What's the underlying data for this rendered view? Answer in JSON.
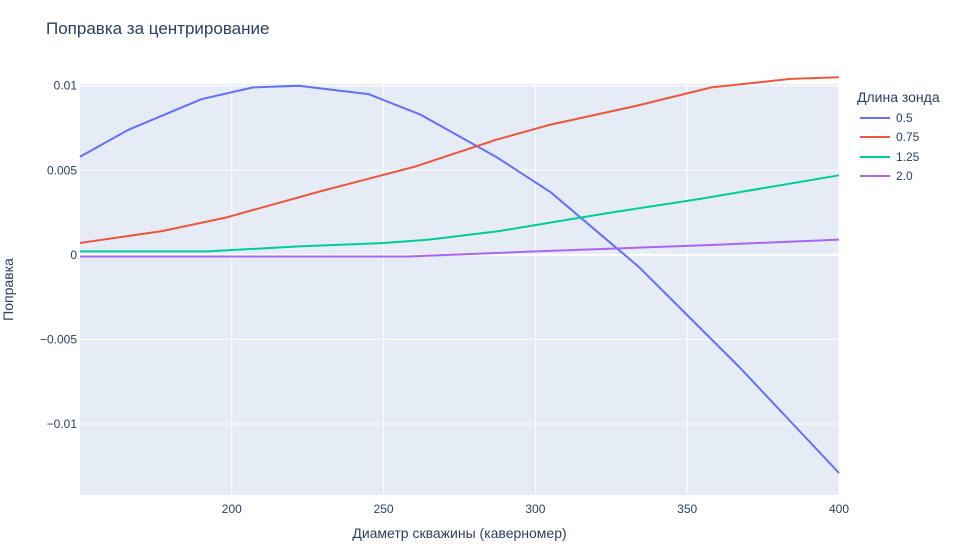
{
  "chart_data": {
    "type": "line",
    "title": "Поправка за центрирование",
    "xlabel": "Диаметр скважины (каверномер)",
    "ylabel": "Поправка",
    "xlim": [
      150,
      400
    ],
    "ylim": [
      -0.0142,
      0.0101
    ],
    "x_ticks": [
      200,
      250,
      300,
      350,
      400
    ],
    "x_tick_labels": [
      "200",
      "250",
      "300",
      "350",
      "400"
    ],
    "y_ticks": [
      0.01,
      0.005,
      0,
      -0.005,
      -0.01
    ],
    "y_tick_labels": [
      "0.01",
      "0.005",
      "0",
      "−0.005",
      "−0.01"
    ],
    "legend_title": "Длина зонда",
    "legend_position": "top-right, outside plot",
    "grid": true,
    "series": [
      {
        "name": "0.5",
        "color": "#636efa",
        "x": [
          150,
          166,
          190,
          207,
          222,
          245,
          262,
          287,
          305,
          334,
          367,
          400
        ],
        "y": [
          0.0058,
          0.0074,
          0.0092,
          0.0099,
          0.01,
          0.0095,
          0.0083,
          0.0058,
          0.0037,
          -0.0007,
          -0.0066,
          -0.0129
        ]
      },
      {
        "name": "0.75",
        "color": "#ef553b",
        "x": [
          150,
          177,
          198,
          230,
          260,
          287,
          305,
          333,
          358,
          384,
          400
        ],
        "y": [
          0.0007,
          0.0014,
          0.0022,
          0.0038,
          0.0052,
          0.0068,
          0.0077,
          0.0088,
          0.0099,
          0.0104,
          0.0105
        ]
      },
      {
        "name": "1.25",
        "color": "#00cc96",
        "x": [
          150,
          192,
          222,
          250,
          265,
          288,
          325,
          354,
          400
        ],
        "y": [
          0.0002,
          0.0002,
          0.0005,
          0.0007,
          0.0009,
          0.0014,
          0.0025,
          0.0033,
          0.0047
        ]
      },
      {
        "name": "2.0",
        "color": "#ab63fa",
        "x": [
          150,
          200,
          250,
          258,
          300,
          330,
          360,
          400
        ],
        "y": [
          -0.0001,
          -0.0001,
          -0.0001,
          -0.0001,
          0.0002,
          0.0004,
          0.0006,
          0.0009
        ]
      }
    ]
  },
  "colors": {
    "plot_background": "#e5ecf6",
    "grid": "#ffffff",
    "text": "#2a3f5f"
  }
}
